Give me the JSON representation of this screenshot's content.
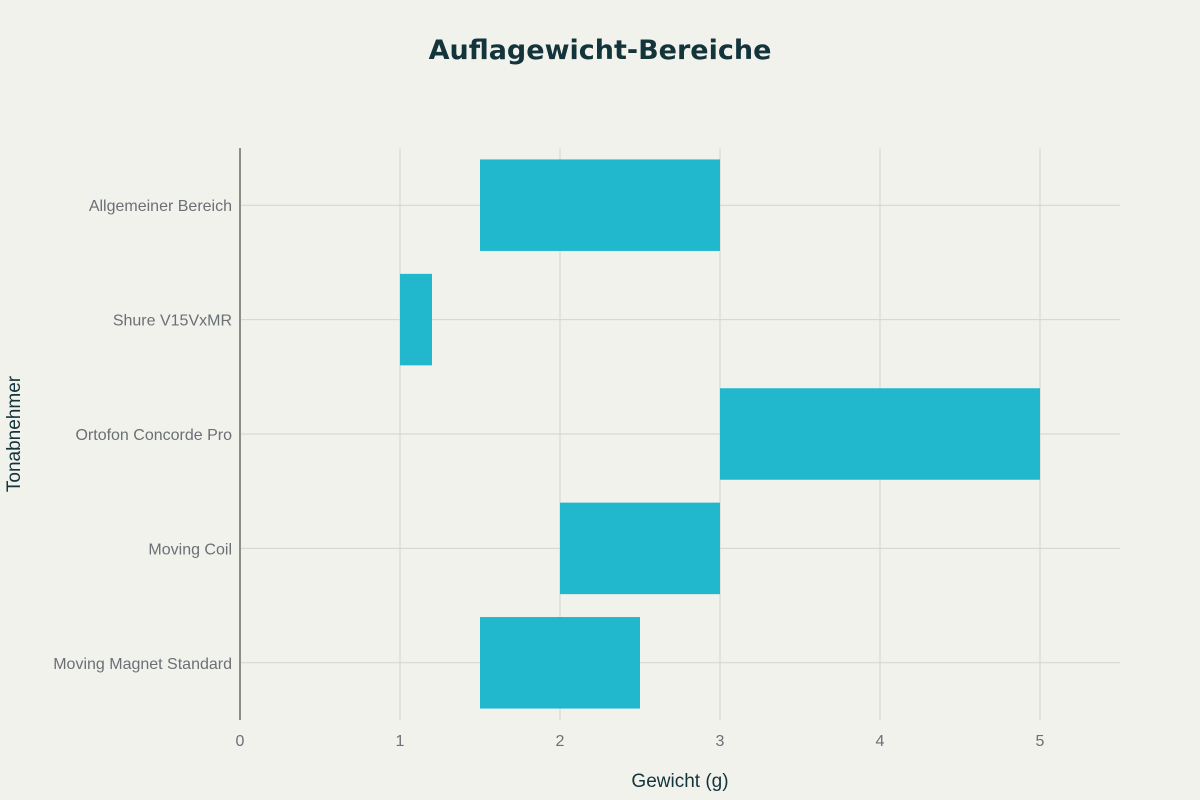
{
  "chart_data": {
    "type": "bar",
    "orientation": "horizontal",
    "subtype": "floating-range",
    "title": "Auflagewicht-Bereiche",
    "xlabel": "Gewicht (g)",
    "ylabel": "Tonabnehmer",
    "xlim": [
      0,
      5.5
    ],
    "x_ticks": [
      0,
      1,
      2,
      3,
      4,
      5
    ],
    "grid": true,
    "legend": "none",
    "bar_color": "#21b8cd",
    "categories": [
      "Allgemeiner Bereich",
      "Shure V15VxMR",
      "Ortofon Concorde Pro",
      "Moving Coil",
      "Moving Magnet Standard"
    ],
    "ranges": [
      {
        "category": "Allgemeiner Bereich",
        "start": 1.5,
        "end": 3.0
      },
      {
        "category": "Shure V15VxMR",
        "start": 1.0,
        "end": 1.2
      },
      {
        "category": "Ortofon Concorde Pro",
        "start": 3.0,
        "end": 5.0
      },
      {
        "category": "Moving Coil",
        "start": 2.0,
        "end": 3.0
      },
      {
        "category": "Moving Magnet Standard",
        "start": 1.5,
        "end": 2.5
      }
    ]
  },
  "colors": {
    "background": "#f2f2ed",
    "bar": "#21b8cd",
    "title": "#13343b",
    "tick_text": "#6b7075",
    "grid": "#d3d4cf",
    "axis": "#8c8e8c"
  }
}
